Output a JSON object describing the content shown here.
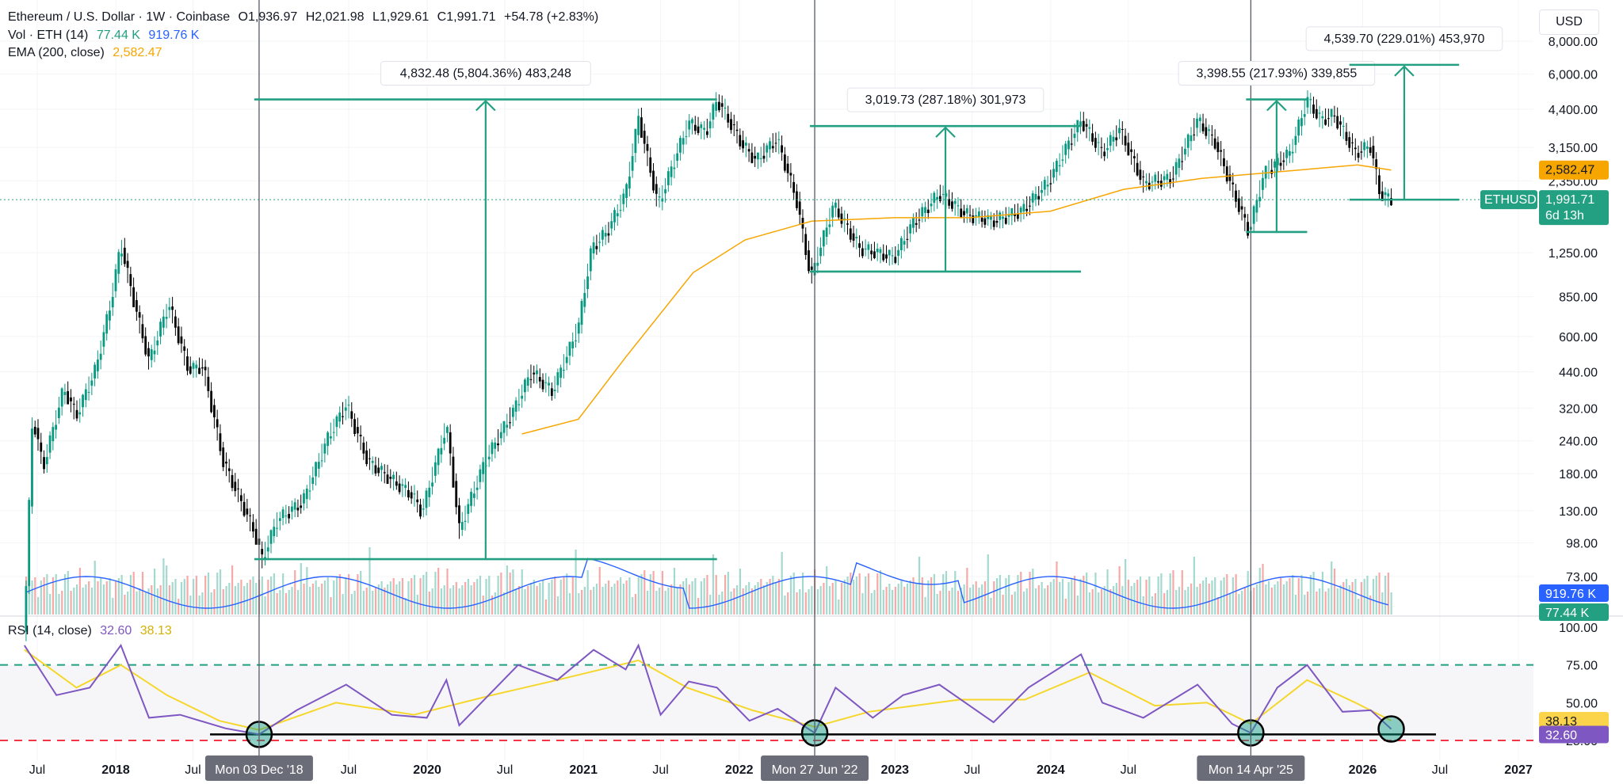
{
  "header": {
    "symbol": "Ethereum / U.S. Dollar · 1W · Coinbase",
    "open": "O1,936.97",
    "high": "H2,021.98",
    "low": "L1,929.61",
    "close": "C1,991.71",
    "change": "+54.78 (+2.83%)",
    "vol_label": "Vol · ETH (14)",
    "vol_value1": "77.44 K",
    "vol_value2": "919.76 K",
    "ema_label": "EMA (200, close)",
    "ema_value": "2,582.47",
    "rsi_label": "RSI (14, close)",
    "rsi_value": "32.60",
    "rsi_ma_value": "38.13",
    "currency": "USD"
  },
  "colors": {
    "up": "#089981",
    "down": "#000000",
    "ema": "#f7a600",
    "volume_ma": "#2962ff",
    "rsi": "#7e57c2",
    "rsi_ma": "#f5d72c",
    "measure": "#22a081",
    "rsi_upper": "#22a081",
    "rsi_lower": "#f23645"
  },
  "chart_data": [
    {
      "type": "line",
      "title": "Ethereum / U.S. Dollar · 1W · Coinbase",
      "y_scale": "log",
      "y_ticks": [
        8000,
        6000,
        4400,
        3150,
        2350,
        1250,
        850,
        600,
        440,
        320,
        240,
        180,
        130,
        98,
        73
      ],
      "y_tick_labels": [
        "8,000.00",
        "6,000.00",
        "4,400.00",
        "3,150.00",
        "2,350.00",
        "1,250.00",
        "850.00",
        "600.00",
        "440.00",
        "320.00",
        "240.00",
        "180.00",
        "130.00",
        "98.00",
        "73.00"
      ],
      "x_ticks": [
        "2017-07",
        "2018-01",
        "2018-07",
        "2019-07",
        "2020-01",
        "2020-07",
        "2021-01",
        "2021-07",
        "2022-01",
        "2023-01",
        "2023-07",
        "2024-01",
        "2024-07",
        "2026-01",
        "2026-07",
        "2027-01"
      ],
      "x_tick_labels": [
        "Jul",
        "2018",
        "Jul",
        "Jul",
        "2020",
        "Jul",
        "2021",
        "Jul",
        "2022",
        "2023",
        "Jul",
        "2024",
        "Jul",
        "2026",
        "Jul",
        "2027"
      ],
      "series": [
        {
          "name": "ETHUSD",
          "points": [
            [
              "2017-06-01",
              45
            ],
            [
              "2017-06-20",
              300
            ],
            [
              "2017-07-15",
              190
            ],
            [
              "2017-09-01",
              380
            ],
            [
              "2017-10-01",
              300
            ],
            [
              "2017-11-15",
              450
            ],
            [
              "2017-12-20",
              800
            ],
            [
              "2018-01-13",
              1350
            ],
            [
              "2018-02-10",
              850
            ],
            [
              "2018-03-20",
              480
            ],
            [
              "2018-05-05",
              800
            ],
            [
              "2018-06-20",
              450
            ],
            [
              "2018-07-25",
              460
            ],
            [
              "2018-09-10",
              200
            ],
            [
              "2018-11-20",
              110
            ],
            [
              "2018-12-10",
              85
            ],
            [
              "2019-01-15",
              120
            ],
            [
              "2019-03-15",
              140
            ],
            [
              "2019-05-15",
              250
            ],
            [
              "2019-06-25",
              330
            ],
            [
              "2019-08-15",
              200
            ],
            [
              "2019-10-10",
              170
            ],
            [
              "2019-11-25",
              150
            ],
            [
              "2019-12-20",
              128
            ],
            [
              "2020-02-15",
              275
            ],
            [
              "2020-03-16",
              110
            ],
            [
              "2020-05-15",
              200
            ],
            [
              "2020-07-20",
              310
            ],
            [
              "2020-09-01",
              440
            ],
            [
              "2020-10-20",
              370
            ],
            [
              "2020-12-20",
              650
            ],
            [
              "2021-01-20",
              1300
            ],
            [
              "2021-02-25",
              1500
            ],
            [
              "2021-04-10",
              2100
            ],
            [
              "2021-05-10",
              4100
            ],
            [
              "2021-06-25",
              1900
            ],
            [
              "2021-08-15",
              3200
            ],
            [
              "2021-09-05",
              3900
            ],
            [
              "2021-10-15",
              3600
            ],
            [
              "2021-11-10",
              4800
            ],
            [
              "2022-01-10",
              3200
            ],
            [
              "2022-02-10",
              2800
            ],
            [
              "2022-03-30",
              3400
            ],
            [
              "2022-05-15",
              2000
            ],
            [
              "2022-06-18",
              1000
            ],
            [
              "2022-08-10",
              1900
            ],
            [
              "2022-10-10",
              1300
            ],
            [
              "2022-12-31",
              1200
            ],
            [
              "2023-02-10",
              1600
            ],
            [
              "2023-04-15",
              2100
            ],
            [
              "2023-06-15",
              1750
            ],
            [
              "2023-08-20",
              1650
            ],
            [
              "2023-10-25",
              1800
            ],
            [
              "2023-12-25",
              2300
            ],
            [
              "2024-03-12",
              4000
            ],
            [
              "2024-05-01",
              3000
            ],
            [
              "2024-06-10",
              3700
            ],
            [
              "2024-08-05",
              2300
            ],
            [
              "2024-10-10",
              2400
            ],
            [
              "2024-12-10",
              4000
            ],
            [
              "2025-01-20",
              3300
            ],
            [
              "2025-03-01",
              2200
            ],
            [
              "2025-04-09",
              1500
            ],
            [
              "2025-05-15",
              2500
            ],
            [
              "2025-07-15",
              3000
            ],
            [
              "2025-08-24",
              4800
            ],
            [
              "2025-09-25",
              4000
            ],
            [
              "2025-10-25",
              4200
            ],
            [
              "2025-12-15",
              3000
            ],
            [
              "2026-01-20",
              3200
            ],
            [
              "2026-02-10",
              2100
            ],
            [
              "2026-03-09",
              1991.71
            ]
          ]
        },
        {
          "name": "EMA (200, close)",
          "points": [
            [
              "2020-08-10",
              255
            ],
            [
              "2020-12-20",
              290
            ],
            [
              "2021-04-10",
              500
            ],
            [
              "2021-09-15",
              1050
            ],
            [
              "2022-01-15",
              1400
            ],
            [
              "2022-06-20",
              1650
            ],
            [
              "2022-12-31",
              1700
            ],
            [
              "2023-06-25",
              1700
            ],
            [
              "2023-12-31",
              1800
            ],
            [
              "2024-06-20",
              2180
            ],
            [
              "2024-12-20",
              2400
            ],
            [
              "2025-06-25",
              2550
            ],
            [
              "2025-12-20",
              2700
            ],
            [
              "2026-03-09",
              2582.47
            ]
          ]
        }
      ],
      "annotations": [
        {
          "text": "4,832.48 (5,804.36%) 483,248",
          "from": [
            "2018-12-03",
            85
          ],
          "to": [
            "2021-11-10",
            4800
          ]
        },
        {
          "text": "3,019.73 (287.18%) 301,973",
          "from": [
            "2022-06-27",
            1060
          ],
          "to": [
            "2024-03-12",
            3800
          ]
        },
        {
          "text": "3,398.55 (217.93%) 339,855",
          "from": [
            "2025-04-14",
            1500
          ],
          "to": [
            "2025-08-24",
            4800
          ]
        },
        {
          "text": "4,539.70 (229.01%) 453,970",
          "from": [
            "2026-03-09",
            1991.71
          ],
          "to": [
            "2026-06-15",
            6500
          ]
        }
      ],
      "vertical_markers": [
        {
          "date": "2018-12-03",
          "label": "Mon 03 Dec '18"
        },
        {
          "date": "2022-06-27",
          "label": "Mon 27 Jun '22"
        },
        {
          "date": "2025-04-14",
          "label": "Mon 14 Apr '25"
        }
      ],
      "price_labels": [
        {
          "text": "2,582.47",
          "value": 2582.47,
          "kind": "ema"
        },
        {
          "text": "1,991.71",
          "value": 1991.71,
          "kind": "price",
          "sub": "6d 13h"
        },
        {
          "text": "ETHUSD",
          "value": 1991.71,
          "kind": "symbol"
        },
        {
          "text": "919.76 K",
          "kind": "volume_ma"
        },
        {
          "text": "77.44 K",
          "kind": "volume"
        }
      ]
    },
    {
      "type": "line",
      "title": "RSI (14, close)",
      "ylim": [
        25,
        100
      ],
      "y_ticks": [
        100,
        75,
        50,
        25
      ],
      "y_tick_labels": [
        "100.00",
        "75.00",
        "50.00",
        "25.00"
      ],
      "upper_band": 75,
      "lower_band": 25,
      "support_level": 29,
      "series": [
        {
          "name": "RSI",
          "points": [
            [
              "2017-06-01",
              88
            ],
            [
              "2017-08-15",
              55
            ],
            [
              "2017-11-01",
              60
            ],
            [
              "2018-01-13",
              88
            ],
            [
              "2018-03-20",
              40
            ],
            [
              "2018-06-01",
              42
            ],
            [
              "2018-09-15",
              33
            ],
            [
              "2018-12-03",
              29
            ],
            [
              "2019-03-01",
              45
            ],
            [
              "2019-06-25",
              62
            ],
            [
              "2019-10-10",
              42
            ],
            [
              "2019-12-31",
              40
            ],
            [
              "2020-02-15",
              65
            ],
            [
              "2020-03-16",
              35
            ],
            [
              "2020-08-01",
              75
            ],
            [
              "2020-11-01",
              65
            ],
            [
              "2021-01-25",
              85
            ],
            [
              "2021-04-10",
              72
            ],
            [
              "2021-05-10",
              88
            ],
            [
              "2021-07-01",
              42
            ],
            [
              "2021-09-05",
              64
            ],
            [
              "2021-11-10",
              60
            ],
            [
              "2022-01-25",
              38
            ],
            [
              "2022-04-01",
              46
            ],
            [
              "2022-06-27",
              30
            ],
            [
              "2022-08-15",
              60
            ],
            [
              "2022-11-10",
              40
            ],
            [
              "2023-01-20",
              55
            ],
            [
              "2023-04-15",
              62
            ],
            [
              "2023-08-20",
              37
            ],
            [
              "2023-11-10",
              60
            ],
            [
              "2024-03-12",
              82
            ],
            [
              "2024-05-01",
              50
            ],
            [
              "2024-08-05",
              40
            ],
            [
              "2024-12-10",
              62
            ],
            [
              "2025-03-01",
              36
            ],
            [
              "2025-04-14",
              30
            ],
            [
              "2025-06-15",
              60
            ],
            [
              "2025-08-24",
              75
            ],
            [
              "2025-11-15",
              44
            ],
            [
              "2026-01-20",
              45
            ],
            [
              "2026-03-09",
              32.6
            ]
          ]
        },
        {
          "name": "RSI-based MA",
          "points": [
            [
              "2017-06-01",
              85
            ],
            [
              "2017-10-01",
              60
            ],
            [
              "2018-01-13",
              75
            ],
            [
              "2018-05-01",
              55
            ],
            [
              "2018-09-01",
              38
            ],
            [
              "2018-12-03",
              32
            ],
            [
              "2019-06-01",
              50
            ],
            [
              "2019-12-01",
              42
            ],
            [
              "2020-06-01",
              55
            ],
            [
              "2020-11-01",
              65
            ],
            [
              "2021-05-10",
              78
            ],
            [
              "2021-09-01",
              60
            ],
            [
              "2022-02-01",
              45
            ],
            [
              "2022-06-27",
              34
            ],
            [
              "2022-11-01",
              44
            ],
            [
              "2023-06-01",
              52
            ],
            [
              "2023-11-01",
              52
            ],
            [
              "2024-04-01",
              70
            ],
            [
              "2024-09-01",
              48
            ],
            [
              "2025-01-01",
              50
            ],
            [
              "2025-04-14",
              36
            ],
            [
              "2025-08-24",
              65
            ],
            [
              "2025-12-15",
              50
            ],
            [
              "2026-03-09",
              38.13
            ]
          ]
        }
      ],
      "highlighted_points": [
        "2018-12-03",
        "2022-06-27",
        "2025-04-14",
        "2026-03-09"
      ]
    }
  ]
}
